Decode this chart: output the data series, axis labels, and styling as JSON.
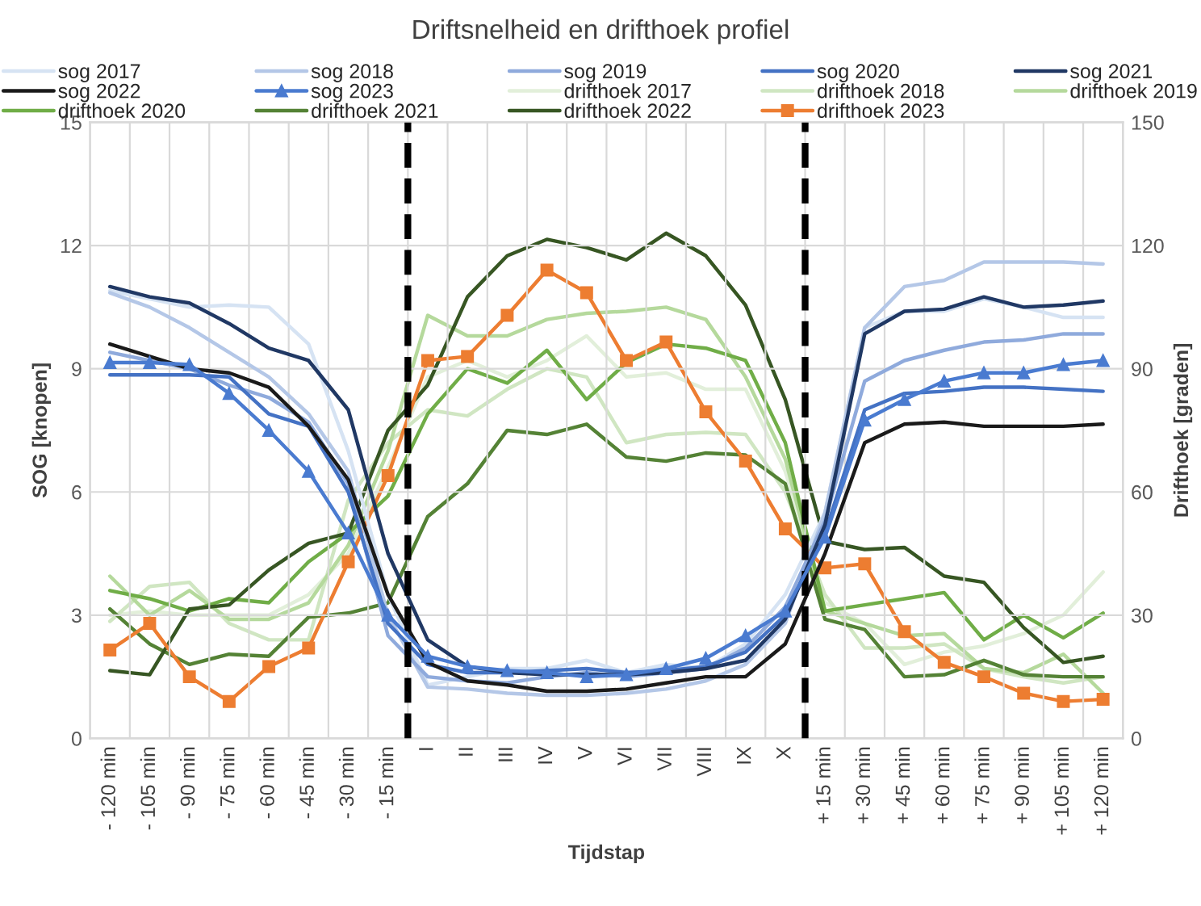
{
  "chart_data": {
    "type": "line",
    "title": "Driftsnelheid en drifthoek profiel",
    "xlabel": "Tijdstap",
    "ylabel": "SOG [knopen]",
    "y2label": "Drifthoek [graden]",
    "categories": [
      "- 120 min",
      "- 105 min",
      "- 90 min",
      "- 75 min",
      "- 60 min",
      "- 45 min",
      "- 30 min",
      "- 15 min",
      "I",
      "II",
      "III",
      "IV",
      "V",
      "VI",
      "VII",
      "VIII",
      "IX",
      "X",
      "+ 15 min",
      "+ 30 min",
      "+ 45 min",
      "+ 60 min",
      "+ 75 min",
      "+ 90 min",
      "+ 105 min",
      "+ 120 min"
    ],
    "ylim": [
      0,
      15
    ],
    "yticks": [
      0,
      3,
      6,
      9,
      12,
      15
    ],
    "y2lim": [
      0,
      150
    ],
    "y2ticks": [
      0,
      30,
      60,
      90,
      120,
      150
    ],
    "grid": true,
    "legend": "top",
    "marker": "none",
    "line_style": "solid",
    "series": [
      {
        "name": "sog 2017",
        "color": "#d6e3f3",
        "values": [
          10.9,
          10.7,
          10.5,
          10.55,
          10.5,
          9.6,
          7.0,
          3.5,
          1.3,
          1.5,
          1.7,
          1.7,
          1.9,
          1.6,
          1.8,
          1.7,
          2.3,
          3.5,
          5.5,
          10.0,
          10.4,
          10.4,
          10.7,
          10.5,
          10.25,
          10.25
        ]
      },
      {
        "name": "sog 2018",
        "color": "#b4c7e7",
        "values": [
          10.85,
          10.5,
          10.0,
          9.4,
          8.8,
          7.9,
          6.5,
          3.0,
          1.25,
          1.2,
          1.1,
          1.05,
          1.05,
          1.1,
          1.2,
          1.4,
          1.8,
          2.8,
          5.5,
          10.0,
          11.0,
          11.15,
          11.6,
          11.6,
          11.6,
          11.55
        ]
      },
      {
        "name": "sog 2019",
        "color": "#8faadc",
        "values": [
          9.4,
          9.2,
          9.0,
          8.6,
          8.3,
          7.7,
          6.2,
          2.5,
          1.5,
          1.4,
          1.35,
          1.5,
          1.6,
          1.5,
          1.6,
          1.7,
          2.2,
          3.2,
          5.3,
          8.7,
          9.2,
          9.45,
          9.65,
          9.7,
          9.85,
          9.85
        ]
      },
      {
        "name": "sog 2020",
        "color": "#4472c4",
        "values": [
          8.85,
          8.85,
          8.85,
          8.8,
          7.9,
          7.6,
          6.0,
          2.8,
          1.8,
          1.6,
          1.6,
          1.65,
          1.7,
          1.6,
          1.65,
          1.75,
          2.1,
          3.0,
          5.0,
          8.0,
          8.4,
          8.45,
          8.55,
          8.55,
          8.5,
          8.45
        ]
      },
      {
        "name": "sog 2021",
        "color": "#203864",
        "values": [
          11.0,
          10.75,
          10.6,
          10.1,
          9.5,
          9.2,
          8.0,
          4.5,
          2.4,
          1.75,
          1.6,
          1.55,
          1.55,
          1.55,
          1.6,
          1.7,
          1.9,
          2.9,
          5.2,
          9.85,
          10.4,
          10.45,
          10.75,
          10.5,
          10.55,
          10.65
        ]
      },
      {
        "name": "sog 2022",
        "color": "#1a1a1a",
        "values": [
          9.6,
          9.3,
          9.0,
          8.9,
          8.55,
          7.6,
          6.3,
          3.5,
          1.85,
          1.4,
          1.3,
          1.15,
          1.15,
          1.2,
          1.35,
          1.5,
          1.5,
          2.3,
          4.5,
          7.2,
          7.65,
          7.7,
          7.6,
          7.6,
          7.6,
          7.65
        ]
      },
      {
        "name": "sog 2023",
        "color": "#4a7bd0",
        "marker": "triangle",
        "values": [
          9.15,
          9.15,
          9.1,
          8.4,
          7.5,
          6.5,
          5.0,
          3.0,
          2.0,
          1.75,
          1.65,
          1.6,
          1.5,
          1.55,
          1.7,
          1.95,
          2.5,
          3.1,
          4.9,
          7.75,
          8.25,
          8.7,
          8.9,
          8.9,
          9.1,
          9.2
        ]
      },
      {
        "name": "drifthoek 2017",
        "color": "#e2efda",
        "axis": "y2",
        "values": [
          30,
          31,
          30,
          30,
          30,
          35,
          45,
          66,
          88,
          92,
          88,
          92,
          98,
          88,
          89,
          85,
          85,
          65,
          33,
          28,
          18,
          21,
          22.5,
          25.5,
          30,
          40.5
        ]
      },
      {
        "name": "drifthoek 2018",
        "color": "#d0e6c2",
        "axis": "y2",
        "values": [
          28.5,
          37,
          38,
          28,
          24,
          24,
          58,
          72,
          80,
          78.5,
          85,
          90,
          88,
          72,
          74,
          74.5,
          74,
          60,
          35,
          22,
          22,
          23,
          17,
          15,
          13.5,
          15
        ]
      },
      {
        "name": "drifthoek 2019",
        "color": "#b5d99c",
        "axis": "y2",
        "values": [
          39.5,
          30,
          36,
          29,
          29,
          33,
          47,
          70,
          103,
          98,
          98,
          102,
          103.5,
          104,
          105,
          102,
          88,
          68,
          31,
          28,
          25,
          25.5,
          17,
          16,
          20.5,
          11
        ]
      },
      {
        "name": "drifthoek 2020",
        "color": "#70ad47",
        "axis": "y2",
        "values": [
          36,
          34,
          31,
          34,
          33,
          43,
          50,
          59,
          79,
          90,
          86.5,
          94.5,
          82.5,
          91.5,
          96,
          95,
          92,
          72,
          31,
          32.5,
          34,
          35.5,
          24,
          30,
          24.5,
          30.5
        ]
      },
      {
        "name": "drifthoek 2021",
        "color": "#548235",
        "axis": "y2",
        "values": [
          31.5,
          23,
          18,
          20.5,
          20,
          29.5,
          30.5,
          33,
          54,
          62,
          75,
          74,
          76.5,
          68.5,
          67.5,
          69.5,
          69,
          62,
          29,
          26.5,
          15,
          15.5,
          19,
          15.5,
          15,
          15
        ]
      },
      {
        "name": "drifthoek 2022",
        "color": "#375623",
        "axis": "y2",
        "values": [
          16.5,
          15.5,
          31.5,
          32.5,
          41,
          47.5,
          50,
          75,
          86,
          107.5,
          117.5,
          121.5,
          119.5,
          116.5,
          123,
          117.5,
          105.5,
          82.5,
          48,
          46,
          46.5,
          39.5,
          38,
          27,
          18.5,
          20
        ]
      },
      {
        "name": "drifthoek 2023",
        "color": "#ed7d31",
        "marker": "square",
        "axis": "y2",
        "values": [
          21.5,
          28,
          15,
          9,
          17.5,
          22,
          43,
          64,
          92,
          93,
          103,
          114,
          108.5,
          92,
          96.5,
          79.5,
          67.5,
          51,
          41.5,
          42.5,
          26,
          18.5,
          15,
          11,
          9,
          9.5
        ]
      }
    ]
  }
}
